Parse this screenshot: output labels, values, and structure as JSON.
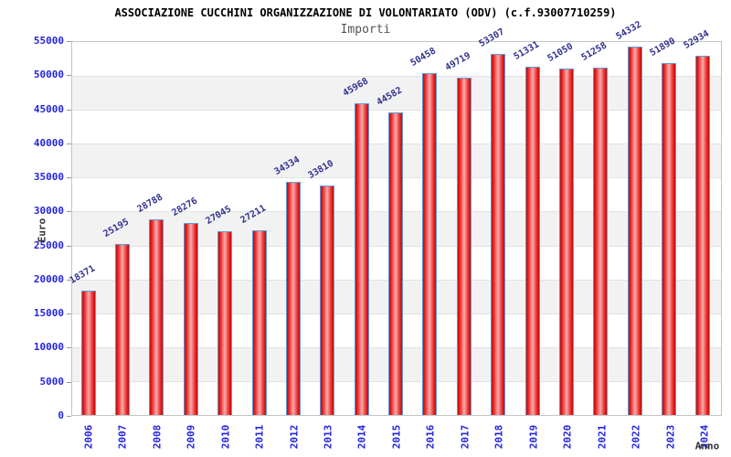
{
  "header": {
    "title": "ASSOCIAZIONE CUCCHINI ORGANIZZAZIONE DI VOLONTARIATO (ODV) (c.f.93007710259)",
    "subtitle": "Importi"
  },
  "chart_data": {
    "type": "bar",
    "title": "ASSOCIAZIONE CUCCHINI ORGANIZZAZIONE DI VOLONTARIATO (ODV) (c.f.93007710259)",
    "subtitle": "Importi",
    "xlabel": "Anno",
    "ylabel": "Euro",
    "categories": [
      "2006",
      "2007",
      "2008",
      "2009",
      "2010",
      "2011",
      "2012",
      "2013",
      "2014",
      "2015",
      "2016",
      "2017",
      "2018",
      "2019",
      "2020",
      "2021",
      "2022",
      "2023",
      "2024"
    ],
    "values": [
      18371,
      25195,
      28788,
      28276,
      27045,
      27211,
      34334,
      33810,
      45968,
      44582,
      50458,
      49719,
      53307,
      51331,
      51050,
      51258,
      54332,
      51890,
      52934
    ],
    "ylim": [
      0,
      55000
    ],
    "ytick_step": 5000,
    "grid": "horizontal-bands-alternating",
    "legend_position": "none",
    "bar_labels_rotation_deg": -30
  },
  "colors": {
    "bar_fill": "#ee2222",
    "bar_fill_center": "#f7adad",
    "bar_border": "#5b9bd5",
    "axis_tick_label": "#2424e0",
    "bar_value_label": "#31318f",
    "band_gray": "#f2f2f2",
    "gridline": "#e2e2e2",
    "plot_border": "#c4c4c4",
    "title": "#000000",
    "subtitle": "#555555",
    "axis_title": "#333333"
  }
}
